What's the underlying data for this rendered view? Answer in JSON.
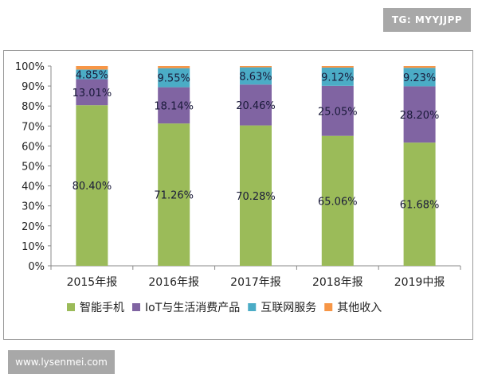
{
  "watermarks": {
    "top": "TG: MYYJJPP",
    "bottom": "www.lysenmei.com"
  },
  "chart_data": {
    "type": "bar",
    "stacked": true,
    "categories": [
      "2015年报",
      "2016年报",
      "2017年报",
      "2018年报",
      "2019中报"
    ],
    "series": [
      {
        "name": "智能手机",
        "color": "#9bbb59",
        "values": [
          80.4,
          71.26,
          70.28,
          65.06,
          61.68
        ],
        "labels": [
          "80.40%",
          "71.26%",
          "70.28%",
          "65.06%",
          "61.68%"
        ]
      },
      {
        "name": "IoT与生活消费产品",
        "color": "#8064a2",
        "values": [
          13.01,
          18.14,
          20.46,
          25.05,
          28.2
        ],
        "labels": [
          "13.01%",
          "18.14%",
          "20.46%",
          "25.05%",
          "28.20%"
        ]
      },
      {
        "name": "互联网服务",
        "color": "#4bacc6",
        "values": [
          4.85,
          9.55,
          8.63,
          9.12,
          9.23
        ],
        "labels": [
          "4.85%",
          "9.55%",
          "8.63%",
          "9.12%",
          "9.23%"
        ]
      },
      {
        "name": "其他收入",
        "color": "#f79646",
        "values": [
          1.74,
          1.05,
          0.63,
          0.77,
          0.89
        ],
        "labels": []
      }
    ],
    "yticks": [
      "0%",
      "10%",
      "20%",
      "30%",
      "40%",
      "50%",
      "60%",
      "70%",
      "80%",
      "90%",
      "100%"
    ],
    "ylim": [
      0,
      100
    ],
    "grid": false,
    "legend": "bottom"
  }
}
